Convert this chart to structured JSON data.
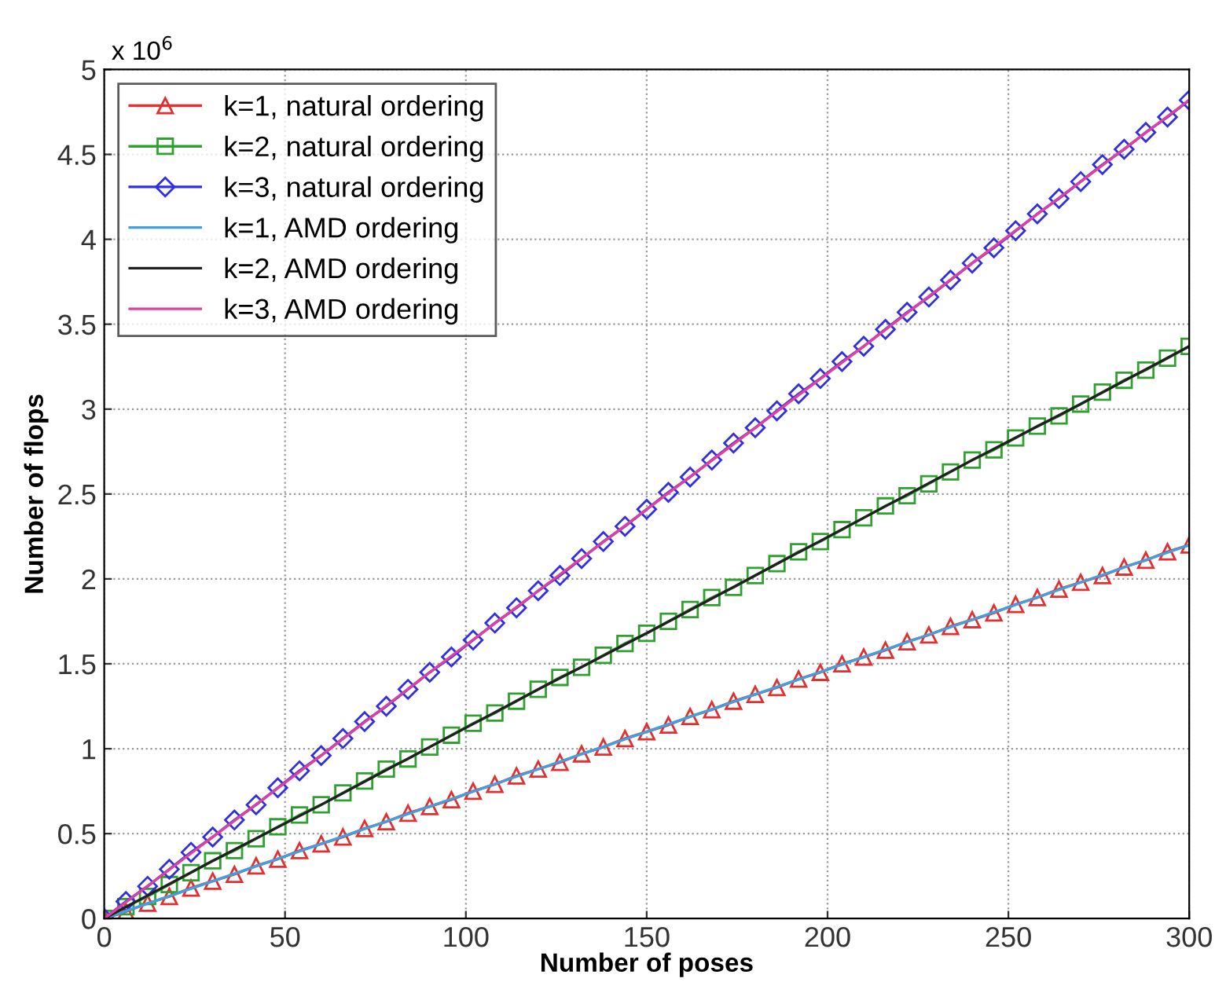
{
  "chart_data": {
    "type": "line",
    "xlabel": "Number of poses",
    "ylabel": "Number of flops",
    "annotations": [
      "x 10$^{6}$"
    ],
    "xlim": [
      0,
      300
    ],
    "xticks": [
      0,
      50,
      100,
      150,
      200,
      250,
      300
    ],
    "ylim": [
      0,
      5
    ],
    "yticks": [
      0,
      0.5,
      1,
      1.5,
      2,
      2.5,
      3,
      3.5,
      4,
      4.5,
      5
    ],
    "grid": true,
    "legend": "top left",
    "series": [
      {
        "name": "k=1, natural ordering",
        "color": "#e03030",
        "marker": "triangle",
        "x": [
          0,
          6,
          12,
          18,
          24,
          30,
          36,
          42,
          48,
          54,
          60,
          66,
          72,
          78,
          84,
          90,
          96,
          102,
          108,
          114,
          120,
          126,
          132,
          138,
          144,
          150,
          156,
          162,
          168,
          174,
          180,
          186,
          192,
          198,
          204,
          210,
          216,
          222,
          228,
          234,
          240,
          246,
          252,
          258,
          264,
          270,
          276,
          282,
          288,
          294,
          300
        ],
        "values": [
          0,
          0.04,
          0.09,
          0.13,
          0.18,
          0.22,
          0.26,
          0.31,
          0.35,
          0.4,
          0.44,
          0.48,
          0.53,
          0.57,
          0.62,
          0.66,
          0.7,
          0.75,
          0.79,
          0.84,
          0.88,
          0.92,
          0.97,
          1.01,
          1.06,
          1.1,
          1.14,
          1.19,
          1.23,
          1.28,
          1.32,
          1.36,
          1.41,
          1.45,
          1.5,
          1.54,
          1.58,
          1.63,
          1.67,
          1.72,
          1.76,
          1.8,
          1.85,
          1.89,
          1.94,
          1.98,
          2.02,
          2.07,
          2.11,
          2.16,
          2.2
        ]
      },
      {
        "name": "k=2, natural ordering",
        "color": "#30a030",
        "marker": "square",
        "x": [
          0,
          6,
          12,
          18,
          24,
          30,
          36,
          42,
          48,
          54,
          60,
          66,
          72,
          78,
          84,
          90,
          96,
          102,
          108,
          114,
          120,
          126,
          132,
          138,
          144,
          150,
          156,
          162,
          168,
          174,
          180,
          186,
          192,
          198,
          204,
          210,
          216,
          222,
          228,
          234,
          240,
          246,
          252,
          258,
          264,
          270,
          276,
          282,
          288,
          294,
          300
        ],
        "values": [
          0,
          0.07,
          0.13,
          0.2,
          0.27,
          0.34,
          0.4,
          0.47,
          0.54,
          0.61,
          0.67,
          0.74,
          0.81,
          0.88,
          0.94,
          1.01,
          1.08,
          1.15,
          1.21,
          1.28,
          1.35,
          1.42,
          1.48,
          1.55,
          1.62,
          1.68,
          1.75,
          1.82,
          1.89,
          1.95,
          2.02,
          2.09,
          2.16,
          2.22,
          2.29,
          2.36,
          2.43,
          2.49,
          2.56,
          2.63,
          2.7,
          2.76,
          2.83,
          2.9,
          2.96,
          3.03,
          3.1,
          3.17,
          3.23,
          3.3,
          3.37
        ]
      },
      {
        "name": "k=3, natural ordering",
        "color": "#3030e0",
        "marker": "diamond",
        "x": [
          0,
          6,
          12,
          18,
          24,
          30,
          36,
          42,
          48,
          54,
          60,
          66,
          72,
          78,
          84,
          90,
          96,
          102,
          108,
          114,
          120,
          126,
          132,
          138,
          144,
          150,
          156,
          162,
          168,
          174,
          180,
          186,
          192,
          198,
          204,
          210,
          216,
          222,
          228,
          234,
          240,
          246,
          252,
          258,
          264,
          270,
          276,
          282,
          288,
          294,
          300
        ],
        "values": [
          0,
          0.1,
          0.19,
          0.29,
          0.39,
          0.48,
          0.58,
          0.67,
          0.77,
          0.87,
          0.96,
          1.06,
          1.16,
          1.25,
          1.35,
          1.45,
          1.54,
          1.64,
          1.74,
          1.83,
          1.93,
          2.02,
          2.12,
          2.22,
          2.31,
          2.41,
          2.51,
          2.6,
          2.7,
          2.8,
          2.89,
          2.99,
          3.09,
          3.18,
          3.28,
          3.37,
          3.47,
          3.57,
          3.66,
          3.76,
          3.86,
          3.95,
          4.05,
          4.15,
          4.24,
          4.34,
          4.44,
          4.53,
          4.63,
          4.72,
          4.82
        ]
      },
      {
        "name": "k=1, AMD ordering",
        "color": "#40a0e0",
        "marker": "none",
        "x": [
          0,
          30,
          60,
          90,
          120,
          150,
          180,
          210,
          240,
          270,
          300
        ],
        "values": [
          0,
          0.22,
          0.44,
          0.66,
          0.88,
          1.1,
          1.32,
          1.54,
          1.76,
          1.98,
          2.2
        ]
      },
      {
        "name": "k=2, AMD ordering",
        "color": "#202020",
        "marker": "none",
        "x": [
          0,
          30,
          60,
          90,
          120,
          150,
          180,
          210,
          240,
          270,
          300
        ],
        "values": [
          0,
          0.34,
          0.67,
          1.01,
          1.35,
          1.68,
          2.02,
          2.36,
          2.7,
          3.03,
          3.37
        ]
      },
      {
        "name": "k=3, AMD ordering",
        "color": "#e040a0",
        "marker": "none",
        "x": [
          0,
          30,
          60,
          90,
          120,
          150,
          180,
          210,
          240,
          270,
          300
        ],
        "values": [
          0,
          0.48,
          0.96,
          1.45,
          1.93,
          2.41,
          2.89,
          3.37,
          3.86,
          4.34,
          4.82
        ]
      }
    ]
  }
}
